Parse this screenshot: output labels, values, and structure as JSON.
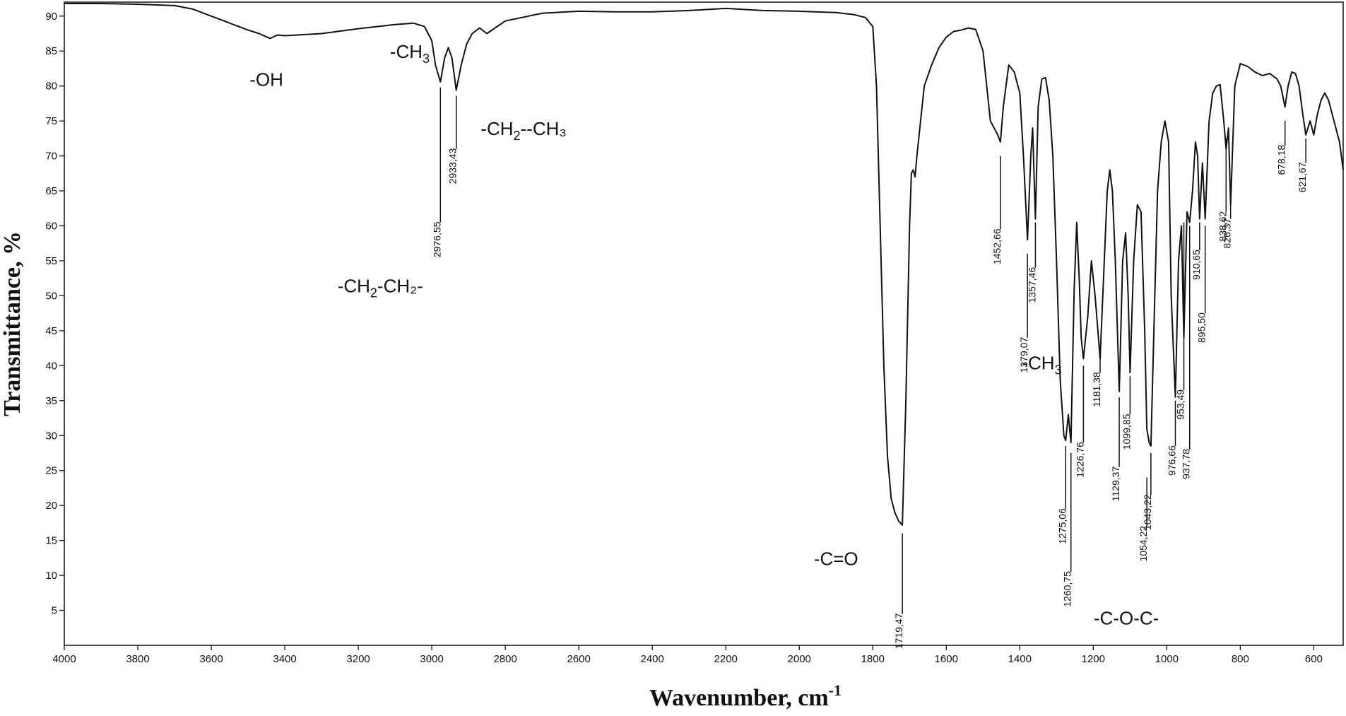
{
  "chart_data": {
    "type": "line",
    "xlabel": "Wavenumber, cm",
    "xlabel_sup": "-1",
    "ylabel": "Transmittance, %",
    "xlim": [
      4000,
      520
    ],
    "ylim": [
      0,
      92
    ],
    "x_ticks": [
      4000,
      3800,
      3600,
      3400,
      3200,
      3000,
      2800,
      2600,
      2400,
      2200,
      2000,
      1800,
      1600,
      1400,
      1200,
      1000,
      800,
      600
    ],
    "y_ticks": [
      5,
      10,
      15,
      20,
      25,
      30,
      35,
      40,
      45,
      50,
      55,
      60,
      65,
      70,
      75,
      80,
      85,
      90
    ],
    "grid": false,
    "series": [
      {
        "color": "#111111",
        "x": [
          4000,
          3900,
          3800,
          3700,
          3650,
          3600,
          3550,
          3500,
          3470,
          3440,
          3420,
          3400,
          3300,
          3200,
          3100,
          3050,
          3020,
          3000,
          2990,
          2976.55,
          2965,
          2955,
          2945,
          2933.43,
          2920,
          2905,
          2890,
          2870,
          2850,
          2800,
          2700,
          2600,
          2500,
          2400,
          2300,
          2200,
          2100,
          2000,
          1900,
          1850,
          1820,
          1800,
          1790,
          1780,
          1770,
          1760,
          1750,
          1740,
          1730,
          1719.47,
          1710,
          1700,
          1695,
          1690,
          1685,
          1680,
          1670,
          1660,
          1640,
          1620,
          1600,
          1580,
          1560,
          1540,
          1520,
          1500,
          1490,
          1480,
          1470,
          1460,
          1452.66,
          1445,
          1430,
          1415,
          1400,
          1390,
          1379.07,
          1370,
          1365,
          1357.46,
          1350,
          1340,
          1330,
          1320,
          1310,
          1300,
          1290,
          1280,
          1275.06,
          1268,
          1260.75,
          1252,
          1245,
          1238,
          1233,
          1226.76,
          1215,
          1205,
          1195,
          1181.38,
          1170,
          1162,
          1155,
          1148,
          1140,
          1129.37,
          1120,
          1112,
          1105,
          1099.85,
          1090,
          1080,
          1070,
          1060,
          1054.22,
          1048,
          1043.22,
          1035,
          1025,
          1015,
          1005,
          995,
          988,
          976.66,
          968,
          960,
          953.49,
          945,
          937.78,
          930,
          922,
          916,
          910.65,
          903,
          895.5,
          885,
          875,
          865,
          855,
          845,
          838.62,
          832,
          826.37,
          815,
          800,
          780,
          760,
          740,
          720,
          700,
          690,
          678.18,
          670,
          660,
          650,
          640,
          630,
          621.67,
          610,
          600,
          590,
          580,
          570,
          560,
          550,
          540,
          530,
          520
        ],
        "y": [
          91.8,
          91.8,
          91.7,
          91.5,
          91.0,
          90.0,
          89.0,
          88.0,
          87.5,
          86.8,
          87.3,
          87.2,
          87.5,
          88.2,
          88.8,
          89.0,
          88.5,
          86.5,
          83.0,
          80.6,
          84.0,
          85.5,
          84.0,
          79.4,
          83.0,
          86.0,
          87.5,
          88.3,
          87.5,
          89.3,
          90.4,
          90.7,
          90.6,
          90.6,
          90.8,
          91.1,
          90.8,
          90.7,
          90.5,
          90.2,
          89.8,
          88.5,
          80.0,
          60.0,
          40.0,
          27.0,
          21.0,
          19.0,
          17.8,
          17.2,
          35.0,
          60.0,
          67.5,
          68.0,
          67.0,
          70.0,
          75.0,
          80.0,
          83.0,
          85.5,
          87.0,
          87.8,
          88.0,
          88.3,
          88.1,
          85.0,
          80.0,
          75.0,
          74.0,
          73.0,
          72.0,
          77.0,
          83.0,
          82.0,
          79.0,
          70.0,
          58.0,
          70.0,
          74.0,
          61.0,
          77.0,
          81.0,
          81.2,
          78.0,
          70.0,
          55.0,
          38.0,
          30.0,
          29.3,
          33.0,
          29.0,
          51.0,
          60.5,
          52.0,
          44.0,
          41.0,
          47.0,
          55.0,
          50.0,
          41.0,
          55.0,
          65.0,
          68.0,
          65.0,
          55.0,
          36.3,
          55.0,
          59.0,
          50.0,
          39.0,
          55.0,
          63.0,
          62.0,
          45.0,
          31.0,
          29.0,
          28.5,
          45.0,
          65.0,
          72.0,
          75.0,
          72.0,
          50.0,
          35.5,
          55.0,
          60.0,
          44.0,
          62.0,
          60.5,
          65.0,
          72.0,
          70.0,
          61.0,
          69.0,
          61.0,
          75.0,
          79.0,
          80.0,
          80.2,
          75.0,
          71.0,
          74.0,
          63.0,
          80.0,
          83.2,
          82.8,
          82.0,
          81.5,
          81.8,
          81.0,
          80.0,
          77.0,
          80.0,
          82.0,
          81.8,
          80.0,
          76.0,
          73.0,
          75.0,
          73.0,
          76.0,
          78.0,
          79.0,
          78.0,
          76.0,
          74.0,
          72.0,
          68.0
        ]
      }
    ],
    "peak_labels": [
      {
        "text": "2976,55",
        "x": 2976.55,
        "y1": 60.5,
        "y2": 79.8
      },
      {
        "text": "2933,43",
        "x": 2933.43,
        "y1": 71.0,
        "y2": 78.6
      },
      {
        "text": "1719,47",
        "x": 1719.47,
        "y1": 4.5,
        "y2": 16.0
      },
      {
        "text": "1452,66",
        "x": 1452.66,
        "y1": 59.5,
        "y2": 70.0
      },
      {
        "text": "1379,07",
        "x": 1379.07,
        "y1": 44.0,
        "y2": 56.0
      },
      {
        "text": "1357,46",
        "x": 1357.46,
        "y1": 54.0,
        "y2": 60.5
      },
      {
        "text": "1275,06",
        "x": 1275.06,
        "y1": 19.5,
        "y2": 28.5
      },
      {
        "text": "1260,75",
        "x": 1260.75,
        "y1": 10.5,
        "y2": 27.5
      },
      {
        "text": "1226,76",
        "x": 1226.76,
        "y1": 29.0,
        "y2": 40.0
      },
      {
        "text": "1181,38",
        "x": 1181.38,
        "y1": 39.0,
        "y2": 42.0
      },
      {
        "text": "1129,37",
        "x": 1129.37,
        "y1": 25.5,
        "y2": 35.5
      },
      {
        "text": "1099,85",
        "x": 1099.85,
        "y1": 33.0,
        "y2": 38.5
      },
      {
        "text": "1054,22",
        "x": 1054.22,
        "y1": 17.0,
        "y2": 24.0
      },
      {
        "text": "1043,22",
        "x": 1043.22,
        "y1": 21.5,
        "y2": 27.5
      },
      {
        "text": "976,66",
        "x": 976.66,
        "y1": 28.5,
        "y2": 35.0
      },
      {
        "text": "953,49",
        "x": 953.49,
        "y1": 36.5,
        "y2": 60.5
      },
      {
        "text": "937,78",
        "x": 937.78,
        "y1": 28.0,
        "y2": 60.0
      },
      {
        "text": "910,65",
        "x": 910.65,
        "y1": 56.5,
        "y2": 60.5
      },
      {
        "text": "895,50",
        "x": 895.5,
        "y1": 47.5,
        "y2": 60.0
      },
      {
        "text": "838,62",
        "x": 838.62,
        "y1": 62.0,
        "y2": 72.5
      },
      {
        "text": "826,37",
        "x": 826.37,
        "y1": 61.0,
        "y2": 63.0
      },
      {
        "text": "678,18",
        "x": 678.18,
        "y1": 71.5,
        "y2": 75.0
      },
      {
        "text": "621,67",
        "x": 621.67,
        "y1": 69.0,
        "y2": 72.5
      }
    ],
    "annotations": [
      {
        "text": "-OH",
        "x": 3450,
        "y": 80.0
      },
      {
        "text": "-CH",
        "sub": "3",
        "tail": "",
        "x": 3060,
        "y": 84.0
      },
      {
        "text": "-CH",
        "sub": "2",
        "tail": "--CH₃",
        "x": 2750,
        "y": 73.0
      },
      {
        "text": "-CH",
        "sub": "2",
        "tail": "-CH₂-",
        "x": 3140,
        "y": 50.5
      },
      {
        "text": "-C=O",
        "x": 1900,
        "y": 11.5
      },
      {
        "text": "-CH",
        "sub": "3",
        "tail": "",
        "x": 1340,
        "y": 39.5
      },
      {
        "text": "-C-O-C-",
        "x": 1110,
        "y": 3.0
      }
    ]
  }
}
